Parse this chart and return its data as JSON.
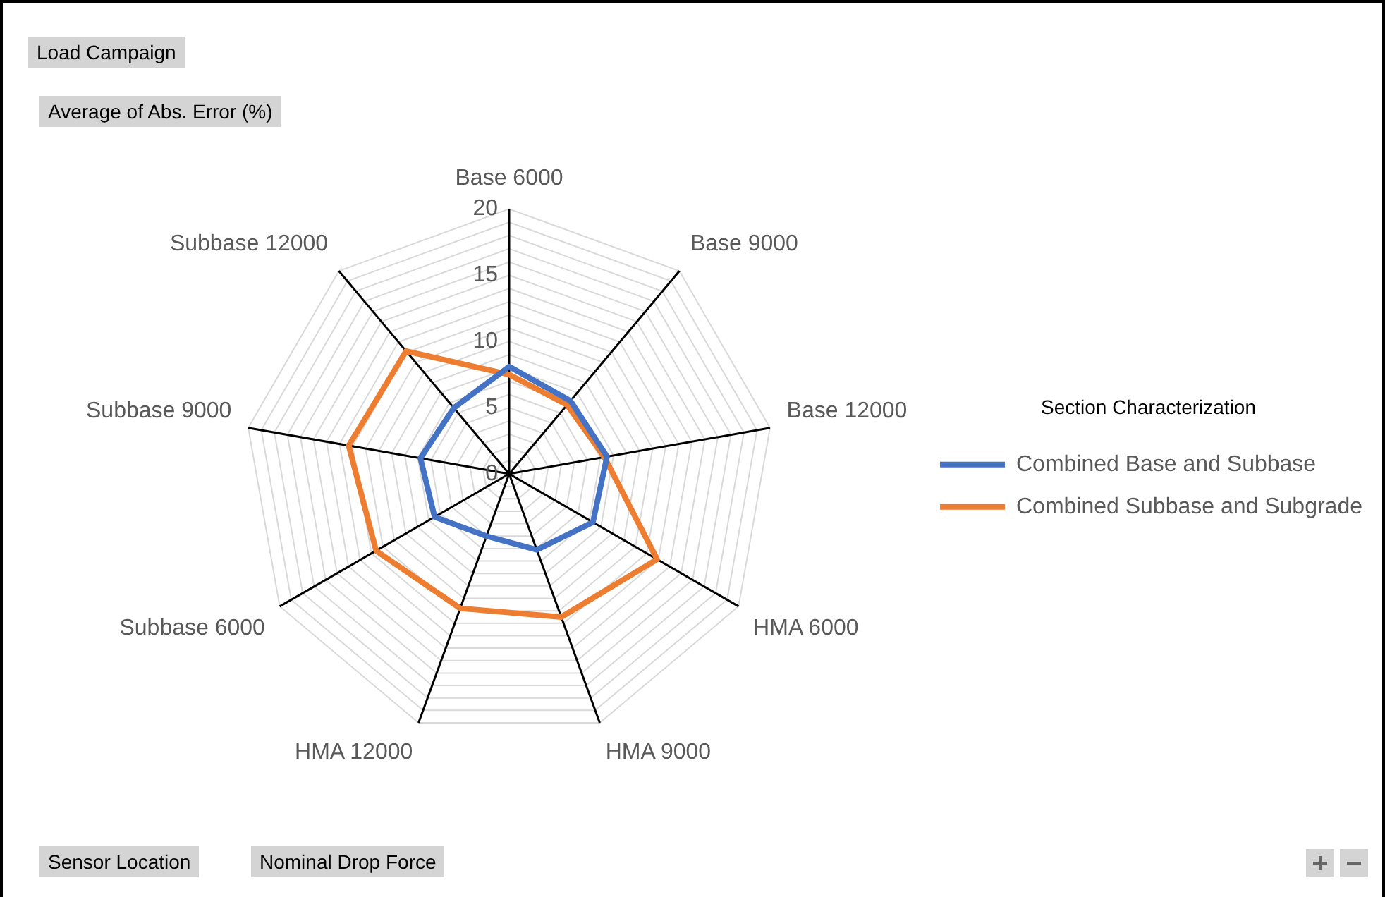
{
  "chart_data": {
    "type": "radar",
    "ylabel": "Average of Abs. Error (%)",
    "legend_title": "Section Characterization",
    "annotations": [
      "Load Campaign",
      "Sensor Location",
      "Nominal Drop Force"
    ],
    "categories": [
      "Base 6000",
      "Base 9000",
      "Base 12000",
      "HMA 6000",
      "HMA 9000",
      "HMA 12000",
      "Subbase 6000",
      "Subbase 9000",
      "Subbase 12000"
    ],
    "series": [
      {
        "name": "Combined Base and Subbase",
        "color": "#4472c4",
        "values": [
          8.1,
          7.2,
          7.5,
          7.3,
          6.1,
          5.0,
          6.5,
          6.8,
          6.5
        ]
      },
      {
        "name": "Combined Subbase and Subgrade",
        "color": "#ed7d31",
        "values": [
          7.5,
          6.8,
          7.3,
          12.9,
          11.5,
          10.8,
          11.6,
          12.3,
          12.1
        ]
      }
    ],
    "ylim": [
      0,
      20
    ],
    "yticks": [
      0,
      5,
      10,
      15,
      20
    ],
    "grid": true,
    "legend": "right",
    "marker": "none",
    "line_style": "solid"
  }
}
